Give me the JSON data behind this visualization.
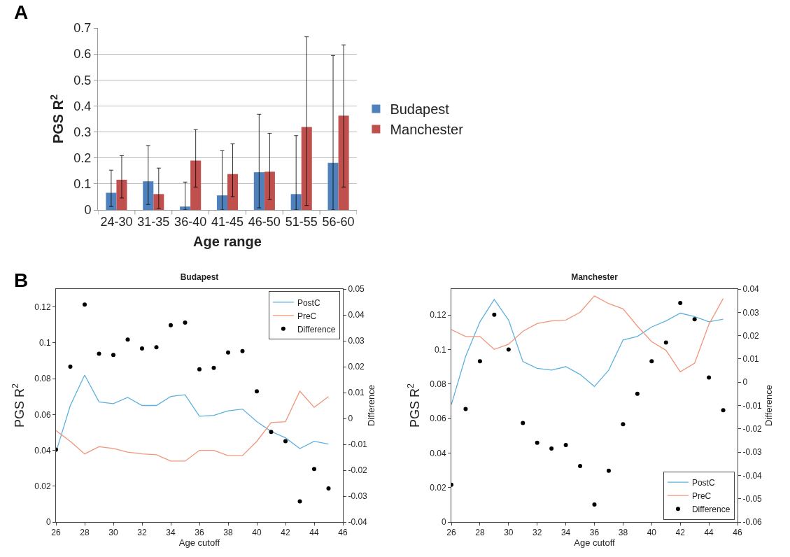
{
  "chart_data": [
    {
      "type": "bar",
      "annotations": [
        "A"
      ],
      "xlabel": "Age range",
      "ylabel": "PGS R$^{2}$",
      "categories": [
        "24-30",
        "31-35",
        "36-40",
        "41-45",
        "46-50",
        "51-55",
        "56-60"
      ],
      "series": [
        {
          "name": "Budapest",
          "color": "#4f81bd",
          "values": [
            0.066,
            0.11,
            0.013,
            0.056,
            0.145,
            0.061,
            0.181
          ],
          "errors": [
            [
              0.013,
              0.153
            ],
            [
              0.021,
              0.248
            ],
            [
              0,
              0.107
            ],
            [
              0,
              0.228
            ],
            [
              0.008,
              0.368
            ],
            [
              0,
              0.286
            ],
            [
              0,
              0.594
            ]
          ]
        },
        {
          "name": "Manchester",
          "color": "#c0504d",
          "values": [
            0.116,
            0.061,
            0.19,
            0.138,
            0.147,
            0.319,
            0.363
          ],
          "errors": [
            [
              0.046,
              0.209
            ],
            [
              0.006,
              0.161
            ],
            [
              0.088,
              0.309
            ],
            [
              0.051,
              0.254
            ],
            [
              0.04,
              0.295
            ],
            [
              0.017,
              0.666
            ],
            [
              0.088,
              0.635
            ]
          ]
        }
      ],
      "ylim": [
        0,
        0.7
      ],
      "yticks": [
        0,
        0.1,
        0.2,
        0.3,
        0.4,
        0.5,
        0.6,
        0.7
      ],
      "grid": "y",
      "legend": "right"
    },
    {
      "type": "line",
      "title": "Budapest",
      "annotations": [
        "B"
      ],
      "xlabel": "Age cutoff",
      "ylabel": "PGS R$^{2}$",
      "y2label": "Difference",
      "x": [
        26,
        27,
        28,
        29,
        30,
        31,
        32,
        33,
        34,
        35,
        36,
        37,
        38,
        39,
        40,
        41,
        42,
        43,
        44,
        45
      ],
      "series": [
        {
          "name": "PostC",
          "type": "line",
          "color": "#5eb1dd",
          "values": [
            0.039,
            0.065,
            0.082,
            0.067,
            0.066,
            0.0695,
            0.065,
            0.065,
            0.07,
            0.071,
            0.059,
            0.0595,
            0.062,
            0.063,
            0.056,
            0.0505,
            0.047,
            0.041,
            0.045,
            0.0435
          ]
        },
        {
          "name": "PreC",
          "type": "line",
          "color": "#f0967a",
          "values": [
            0.051,
            0.045,
            0.038,
            0.042,
            0.041,
            0.039,
            0.038,
            0.0375,
            0.034,
            0.034,
            0.04,
            0.04,
            0.037,
            0.037,
            0.045,
            0.0555,
            0.056,
            0.073,
            0.064,
            0.07
          ]
        },
        {
          "name": "Difference",
          "type": "scatter",
          "axis": "y2",
          "color": "#000000",
          "values": [
            -0.012,
            0.02,
            0.044,
            0.025,
            0.0245,
            0.0305,
            0.027,
            0.0275,
            0.036,
            0.037,
            0.019,
            0.0195,
            0.0255,
            0.026,
            0.0105,
            -0.0052,
            -0.0088,
            -0.032,
            -0.0195,
            -0.027
          ]
        }
      ],
      "xlim": [
        26,
        46
      ],
      "xticks": [
        26,
        28,
        30,
        32,
        34,
        36,
        38,
        40,
        42,
        44,
        46
      ],
      "ylim": [
        0,
        0.13
      ],
      "yticks": [
        0,
        0.02,
        0.04,
        0.06,
        0.08,
        0.1,
        0.12
      ],
      "y2lim": [
        -0.04,
        0.05
      ],
      "y2ticks": [
        -0.04,
        -0.03,
        -0.02,
        -0.01,
        0,
        0.01,
        0.02,
        0.03,
        0.04,
        0.05
      ],
      "legend": "top right",
      "line_style": "solid",
      "grid": false
    },
    {
      "type": "line",
      "title": "Manchester",
      "xlabel": "Age cutoff",
      "ylabel": "PGS R$^{2}$",
      "y2label": "Difference",
      "x": [
        26,
        27,
        28,
        29,
        30,
        31,
        32,
        33,
        34,
        35,
        36,
        37,
        38,
        39,
        40,
        41,
        42,
        43,
        44,
        45
      ],
      "series": [
        {
          "name": "PostC",
          "type": "line",
          "color": "#5eb1dd",
          "values": [
            0.068,
            0.096,
            0.116,
            0.129,
            0.117,
            0.093,
            0.089,
            0.088,
            0.09,
            0.0855,
            0.0785,
            0.088,
            0.1055,
            0.1075,
            0.113,
            0.1165,
            0.121,
            0.119,
            0.116,
            0.1175
          ]
        },
        {
          "name": "PreC",
          "type": "line",
          "color": "#f0967a",
          "values": [
            0.1115,
            0.1075,
            0.1075,
            0.1,
            0.103,
            0.1105,
            0.115,
            0.1165,
            0.117,
            0.1215,
            0.131,
            0.1265,
            0.1235,
            0.1135,
            0.1045,
            0.0995,
            0.087,
            0.092,
            0.1145,
            0.1295
          ]
        },
        {
          "name": "Difference",
          "type": "scatter",
          "axis": "y2",
          "color": "#000000",
          "values": [
            -0.044,
            -0.0115,
            0.009,
            0.029,
            0.014,
            -0.0175,
            -0.026,
            -0.0285,
            -0.027,
            -0.036,
            -0.0525,
            -0.038,
            -0.018,
            -0.005,
            0.009,
            0.017,
            0.034,
            0.027,
            0.002,
            -0.012
          ]
        }
      ],
      "xlim": [
        26,
        46
      ],
      "xticks": [
        26,
        28,
        30,
        32,
        34,
        36,
        38,
        40,
        42,
        44,
        46
      ],
      "ylim": [
        0,
        0.135
      ],
      "yticks": [
        0,
        0.02,
        0.04,
        0.06,
        0.08,
        0.1,
        0.12
      ],
      "y2lim": [
        -0.06,
        0.04
      ],
      "y2ticks": [
        -0.06,
        -0.05,
        -0.04,
        -0.03,
        -0.02,
        -0.01,
        0,
        0.01,
        0.02,
        0.03,
        0.04
      ],
      "legend": "bottom right",
      "line_style": "solid",
      "grid": false
    }
  ]
}
